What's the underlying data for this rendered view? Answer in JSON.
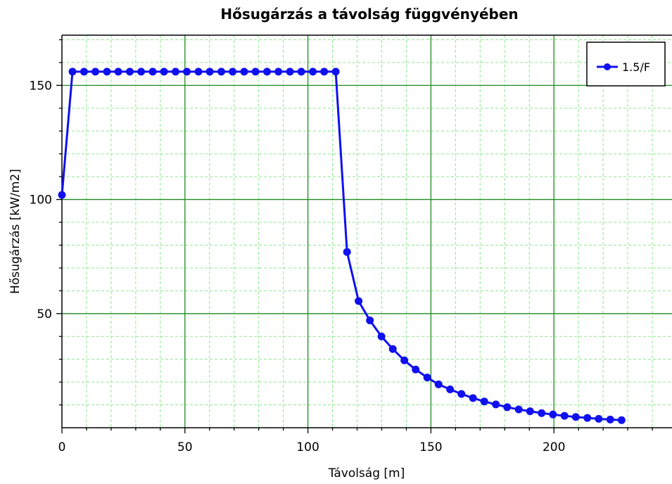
{
  "chart_data": {
    "type": "line",
    "title": "Hősugárzás a távolság függvényében",
    "xlabel": "Távolság [m]",
    "ylabel": "Hősugárzás [kW/m2]",
    "xlim": [
      0,
      248
    ],
    "ylim": [
      0,
      172
    ],
    "x_ticks": [
      0,
      50,
      100,
      150,
      200
    ],
    "y_ticks": [
      50,
      100,
      150
    ],
    "grid": true,
    "legend_position": "top-right",
    "colors": {
      "series": "#1010ee",
      "major_grid": "#1e8c1e",
      "minor_grid": "#8de88d",
      "frame": "#000000"
    },
    "series": [
      {
        "name": "1.5/F",
        "x": [
          0,
          4.3,
          9,
          13.6,
          18.3,
          22.9,
          27.6,
          32.2,
          36.9,
          41.5,
          46.2,
          50.8,
          55.5,
          60.1,
          64.8,
          69.4,
          74.1,
          78.7,
          83.4,
          88,
          92.7,
          97.3,
          102,
          106.6,
          111.3,
          115.9,
          120.6,
          125.2,
          129.9,
          134.5,
          139.2,
          143.8,
          148.5,
          153.1,
          157.8,
          162.4,
          167.1,
          171.7,
          176.4,
          181,
          185.7,
          190.3,
          195,
          199.6,
          204.3,
          208.9,
          213.6,
          218.2,
          222.9,
          227.5
        ],
        "y": [
          102,
          156,
          156,
          156,
          156,
          156,
          156,
          156,
          156,
          156,
          156,
          156,
          156,
          156,
          156,
          156,
          156,
          156,
          156,
          156,
          156,
          156,
          156,
          156,
          156,
          77,
          55.5,
          47,
          40,
          34.5,
          29.5,
          25.5,
          22,
          19,
          16.8,
          14.8,
          13,
          11.5,
          10.2,
          9,
          8,
          7.2,
          6.4,
          5.8,
          5.2,
          4.7,
          4.3,
          3.9,
          3.6,
          3.3
        ]
      }
    ]
  }
}
